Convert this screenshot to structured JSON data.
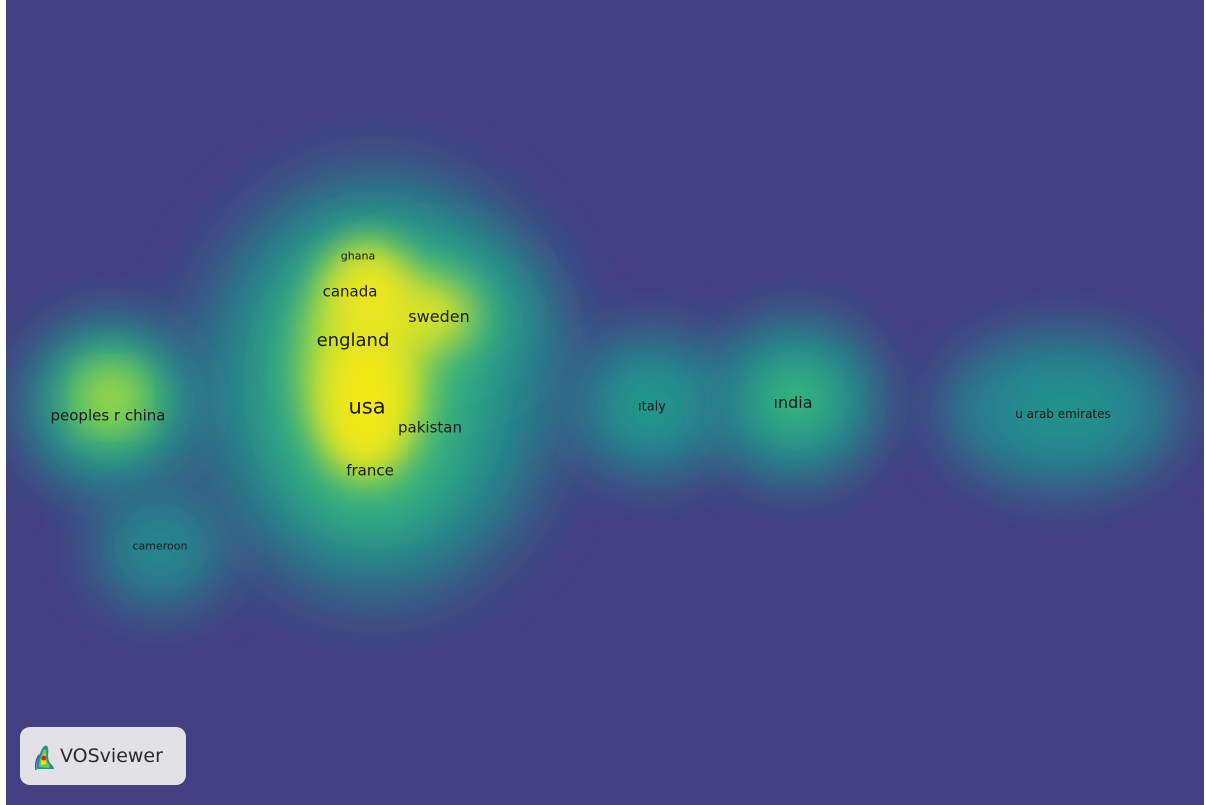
{
  "map": {
    "background_color": "#433f82",
    "colormap": [
      "#433f82",
      "#2a7a8c",
      "#21918c",
      "#3bb57a",
      "#9bd447",
      "#e8e41c",
      "#f5eb16"
    ],
    "items": [
      {
        "label": "usa",
        "density": 1.0
      },
      {
        "label": "england",
        "density": 0.85
      },
      {
        "label": "canada",
        "density": 0.75
      },
      {
        "label": "sweden",
        "density": 0.8
      },
      {
        "label": "ghana",
        "density": 0.55
      },
      {
        "label": "pakistan",
        "density": 0.75
      },
      {
        "label": "france",
        "density": 0.65
      },
      {
        "label": "peoples r china",
        "density": 0.75
      },
      {
        "label": "cameroon",
        "density": 0.45
      },
      {
        "label": "ıtaly",
        "density": 0.5
      },
      {
        "label": "ındia",
        "density": 0.6
      },
      {
        "label": "u arab emirates",
        "density": 0.5
      }
    ]
  },
  "badge": {
    "brand": "VOSviewer",
    "logo_icon": "vosviewer-logo-icon"
  }
}
